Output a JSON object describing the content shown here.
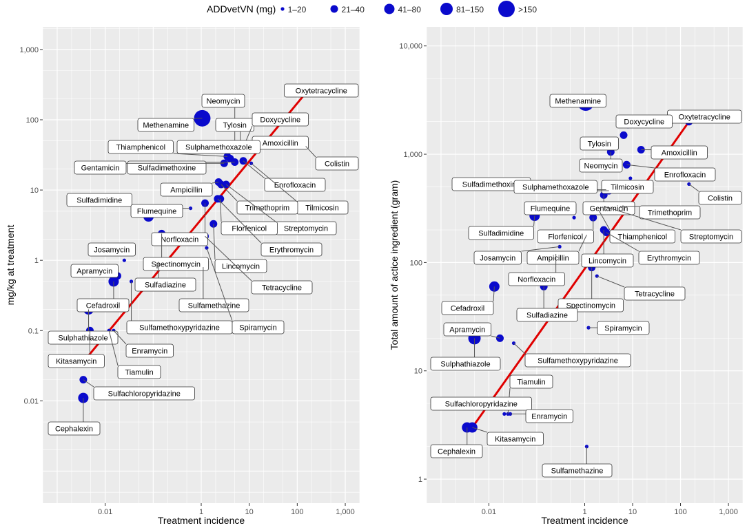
{
  "legend": {
    "title": "ADDvetVN (mg)",
    "items": [
      "1–20",
      "21–40",
      "41–80",
      "81–150",
      ">150"
    ]
  },
  "colors": {
    "point": "#0a0acc",
    "line": "#e00000",
    "panel": "#ebebeb",
    "grid": "#ffffff"
  },
  "chart_data": [
    {
      "type": "scatter",
      "title": "",
      "xlabel": "Treatment incidence",
      "ylabel": "mg/kg at treatment",
      "xscale": "log10",
      "yscale": "log10",
      "xlim": [
        0.0005,
        2000
      ],
      "ylim": [
        0.00035,
        2100
      ],
      "xticks": [
        0.01,
        1,
        10,
        100,
        1000
      ],
      "xtick_labels": [
        "0.01",
        "1",
        "10",
        "100",
        "1,000"
      ],
      "yticks": [
        0.01,
        0.1,
        1,
        10,
        100,
        1000
      ],
      "ytick_labels": [
        "0.01",
        "0.1",
        "1",
        "10",
        "100",
        "1,000"
      ],
      "fit_line": {
        "x": [
          0.004,
          150
        ],
        "y": [
          0.04,
          240
        ]
      },
      "points": [
        {
          "name": "Oxytetracycline",
          "x": 150,
          "y": 240,
          "size_class": 2
        },
        {
          "name": "Methenamine",
          "x": 1.05,
          "y": 105,
          "size_class": 5
        },
        {
          "name": "Neomycin",
          "x": 5,
          "y": 40,
          "size_class": 2
        },
        {
          "name": "Tylosin",
          "x": 6.5,
          "y": 38,
          "size_class": 2
        },
        {
          "name": "Doxycycline",
          "x": 8,
          "y": 45,
          "size_class": 1
        },
        {
          "name": "Amoxicillin",
          "x": 15,
          "y": 50,
          "size_class": 2
        },
        {
          "name": "Colistin",
          "x": 150,
          "y": 42,
          "size_class": 1
        },
        {
          "name": "Thiamphenicol",
          "x": 3.5,
          "y": 30,
          "size_class": 2
        },
        {
          "name": "Sulphamethoxazole",
          "x": 4,
          "y": 28,
          "size_class": 2
        },
        {
          "name": "Enrofloxacin",
          "x": 7.5,
          "y": 26,
          "size_class": 2
        },
        {
          "name": "Sulfadimethoxine",
          "x": 5,
          "y": 25,
          "size_class": 2
        },
        {
          "name": "Gentamicin",
          "x": 3,
          "y": 24,
          "size_class": 2
        },
        {
          "name": "Tilmicosin",
          "x": 11,
          "y": 24,
          "size_class": 1
        },
        {
          "name": "Ampicillin",
          "x": 2.3,
          "y": 13,
          "size_class": 2
        },
        {
          "name": "Trimethoprim",
          "x": 2.6,
          "y": 12,
          "size_class": 2
        },
        {
          "name": "Streptomycin",
          "x": 3.3,
          "y": 12,
          "size_class": 2
        },
        {
          "name": "Sulfadimidine",
          "x": 0.08,
          "y": 4.2,
          "size_class": 3
        },
        {
          "name": "Flumequine",
          "x": 0.6,
          "y": 5.5,
          "size_class": 1
        },
        {
          "name": "Florfenicol",
          "x": 2.5,
          "y": 7.5,
          "size_class": 2
        },
        {
          "name": "Erythromycin",
          "x": 2.2,
          "y": 7.5,
          "size_class": 2
        },
        {
          "name": "Norfloxacin",
          "x": 1.2,
          "y": 6.5,
          "size_class": 2
        },
        {
          "name": "Lincomycin",
          "x": 1.8,
          "y": 3.3,
          "size_class": 2
        },
        {
          "name": "Tetracycline",
          "x": 1.2,
          "y": 2.2,
          "size_class": 2
        },
        {
          "name": "Spectinomycin",
          "x": 0.15,
          "y": 2.4,
          "size_class": 2
        },
        {
          "name": "Josamycin",
          "x": 0.025,
          "y": 1.0,
          "size_class": 1
        },
        {
          "name": "Apramycin",
          "x": 0.018,
          "y": 0.6,
          "size_class": 2
        },
        {
          "name": "Cefadroxil",
          "x": 0.015,
          "y": 0.5,
          "size_class": 3
        },
        {
          "name": "Sulfadiazine",
          "x": 0.13,
          "y": 0.95,
          "size_class": 1
        },
        {
          "name": "Sulfamethoxypyridazine",
          "x": 0.035,
          "y": 0.5,
          "size_class": 1
        },
        {
          "name": "Sulfamethazine",
          "x": 1.1,
          "y": 0.8,
          "size_class": 1
        },
        {
          "name": "Spiramycin",
          "x": 1.3,
          "y": 1.5,
          "size_class": 1
        },
        {
          "name": "Sulphathiazole",
          "x": 0.0045,
          "y": 0.2,
          "size_class": 3
        },
        {
          "name": "Kitasamycin",
          "x": 0.0048,
          "y": 0.1,
          "size_class": 2
        },
        {
          "name": "Enramycin",
          "x": 0.015,
          "y": 0.1,
          "size_class": 1
        },
        {
          "name": "Tiamulin",
          "x": 0.012,
          "y": 0.1,
          "size_class": 1
        },
        {
          "name": "Sulfachloropyridazine",
          "x": 0.0035,
          "y": 0.02,
          "size_class": 2
        },
        {
          "name": "Cephalexin",
          "x": 0.0035,
          "y": 0.011,
          "size_class": 3
        }
      ]
    },
    {
      "type": "scatter",
      "title": "",
      "xlabel": "Treatment incidence",
      "ylabel": "Total amount of actice ingredient (gram)",
      "xscale": "log10",
      "yscale": "log10",
      "xlim": [
        0.0005,
        2000
      ],
      "ylim": [
        0.6,
        15000
      ],
      "xticks": [
        0.01,
        1,
        10,
        100,
        1000
      ],
      "xtick_labels": [
        "0.01",
        "1",
        "10",
        "100",
        "1,000"
      ],
      "yticks": [
        1,
        10,
        100,
        1000,
        10000
      ],
      "ytick_labels": [
        "1",
        "10",
        "100",
        "1,000",
        "10,000"
      ],
      "fit_line": {
        "x": [
          0.0045,
          150
        ],
        "y": [
          3,
          2000
        ]
      },
      "points": [
        {
          "name": "Methenamine",
          "x": 1.05,
          "y": 3000,
          "size_class": 5
        },
        {
          "name": "Oxytetracycline",
          "x": 150,
          "y": 2000,
          "size_class": 2
        },
        {
          "name": "Doxycycline",
          "x": 8,
          "y": 1800,
          "size_class": 1
        },
        {
          "name": "Tylosin",
          "x": 6.5,
          "y": 1500,
          "size_class": 2
        },
        {
          "name": "Amoxicillin",
          "x": 15,
          "y": 1100,
          "size_class": 2
        },
        {
          "name": "Neomycin",
          "x": 3.5,
          "y": 1050,
          "size_class": 2
        },
        {
          "name": "Enrofloxacin",
          "x": 7.5,
          "y": 800,
          "size_class": 2
        },
        {
          "name": "Colistin",
          "x": 150,
          "y": 530,
          "size_class": 1
        },
        {
          "name": "Tilmicosin",
          "x": 9,
          "y": 600,
          "size_class": 1
        },
        {
          "name": "Sulfadimethoxine",
          "x": 2.8,
          "y": 470,
          "size_class": 2
        },
        {
          "name": "Sulphamethoxazole",
          "x": 3.2,
          "y": 460,
          "size_class": 2
        },
        {
          "name": "Gentamicin",
          "x": 2.5,
          "y": 420,
          "size_class": 2
        },
        {
          "name": "Trimethoprim",
          "x": 5.5,
          "y": 330,
          "size_class": 1
        },
        {
          "name": "Flumequine",
          "x": 0.6,
          "y": 260,
          "size_class": 1
        },
        {
          "name": "Sulfadimidine",
          "x": 0.09,
          "y": 270,
          "size_class": 3
        },
        {
          "name": "Florfenicol",
          "x": 1.5,
          "y": 260,
          "size_class": 2
        },
        {
          "name": "Streptomycin",
          "x": 2.5,
          "y": 330,
          "size_class": 2
        },
        {
          "name": "Thiamphenicol",
          "x": 2,
          "y": 300,
          "size_class": 2
        },
        {
          "name": "Erythromycin",
          "x": 2.8,
          "y": 190,
          "size_class": 2
        },
        {
          "name": "Ampicillin",
          "x": 1.1,
          "y": 180,
          "size_class": 2
        },
        {
          "name": "Lincomycin",
          "x": 2.5,
          "y": 200,
          "size_class": 2
        },
        {
          "name": "Josamycin",
          "x": 0.3,
          "y": 140,
          "size_class": 1
        },
        {
          "name": "Norfloxacin",
          "x": 0.25,
          "y": 120,
          "size_class": 1
        },
        {
          "name": "Tetracycline",
          "x": 1.8,
          "y": 75,
          "size_class": 1
        },
        {
          "name": "Spectinomycin",
          "x": 1.4,
          "y": 90,
          "size_class": 2
        },
        {
          "name": "Cefadroxil",
          "x": 0.013,
          "y": 60,
          "size_class": 3
        },
        {
          "name": "Sulfadiazine",
          "x": 0.14,
          "y": 60,
          "size_class": 2
        },
        {
          "name": "Spiramycin",
          "x": 1.2,
          "y": 25,
          "size_class": 1
        },
        {
          "name": "Apramycin",
          "x": 0.017,
          "y": 20,
          "size_class": 2
        },
        {
          "name": "Sulphathiazole",
          "x": 0.005,
          "y": 20,
          "size_class": 4
        },
        {
          "name": "Sulfamethoxypyridazine",
          "x": 0.033,
          "y": 18,
          "size_class": 1
        },
        {
          "name": "Tiamulin",
          "x": 0.025,
          "y": 4,
          "size_class": 1
        },
        {
          "name": "Sulfachloropyridazine",
          "x": 0.021,
          "y": 4,
          "size_class": 1
        },
        {
          "name": "Enramycin",
          "x": 0.028,
          "y": 4,
          "size_class": 1
        },
        {
          "name": "Kitasamycin",
          "x": 0.0045,
          "y": 3,
          "size_class": 3
        },
        {
          "name": "Cephalexin",
          "x": 0.0035,
          "y": 3,
          "size_class": 3
        },
        {
          "name": "Sulfamethazine",
          "x": 1.1,
          "y": 2,
          "size_class": 1
        }
      ]
    }
  ]
}
